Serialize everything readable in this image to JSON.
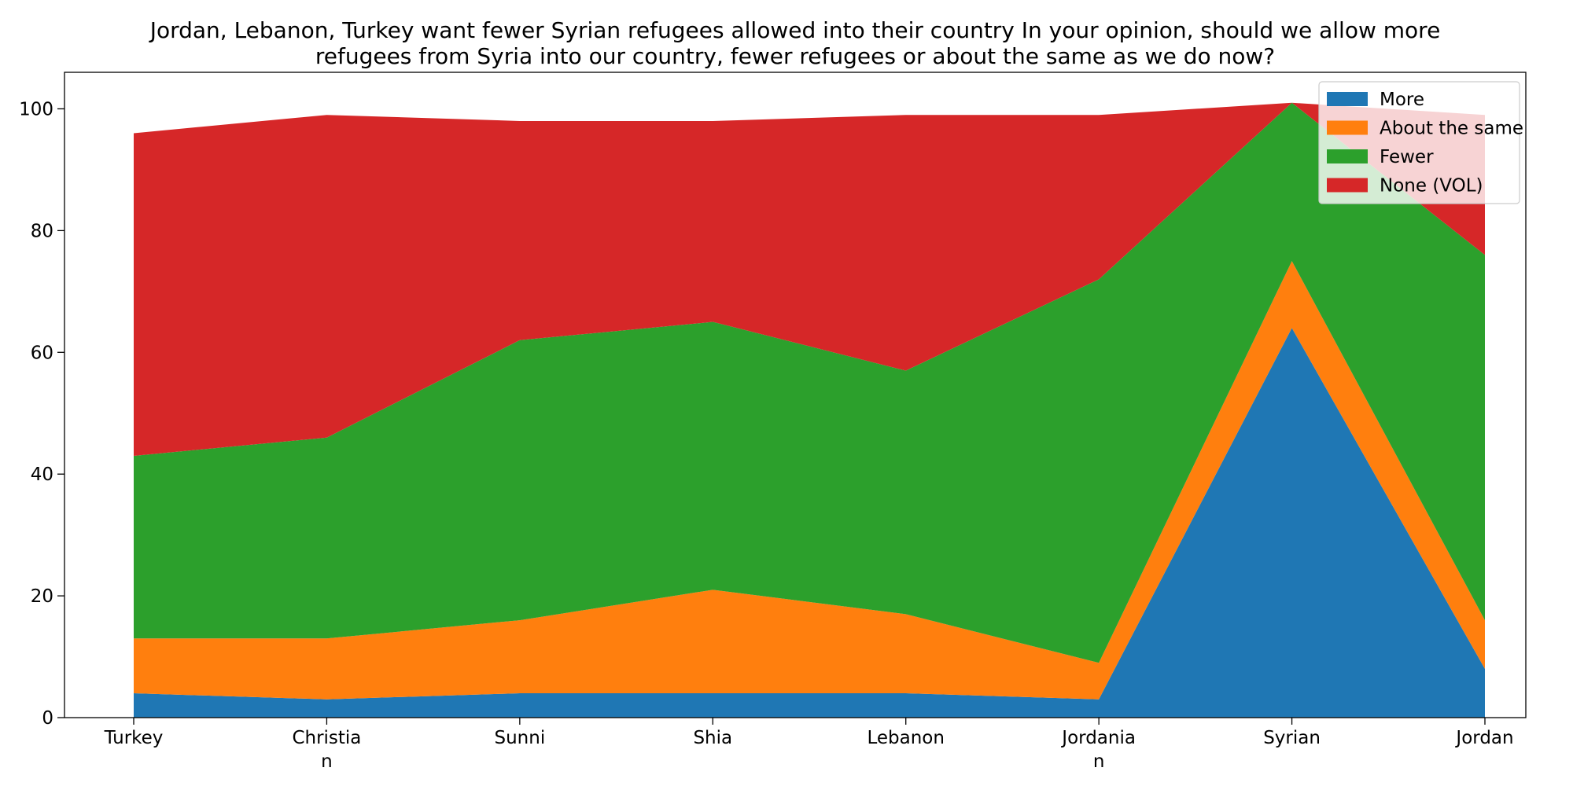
{
  "chart_data": {
    "type": "area",
    "stacked": true,
    "title_lines": [
      "Jordan, Lebanon, Turkey want fewer Syrian refugees allowed into their country In your opinion, should we allow more",
      "refugees from Syria into our country, fewer refugees or about the same as we do now?"
    ],
    "categories": [
      [
        "Turkey"
      ],
      [
        "Christia",
        "n"
      ],
      [
        "Sunni"
      ],
      [
        "Shia"
      ],
      [
        "Lebanon"
      ],
      [
        "Jordania",
        "n"
      ],
      [
        "Syrian"
      ],
      [
        "Jordan"
      ]
    ],
    "series": [
      {
        "name": "More",
        "color": "#1f77b4",
        "values": [
          4,
          3,
          4,
          4,
          4,
          3,
          64,
          8
        ]
      },
      {
        "name": "About the same",
        "color": "#ff7f0e",
        "values": [
          9,
          10,
          12,
          17,
          13,
          6,
          11,
          8
        ]
      },
      {
        "name": "Fewer",
        "color": "#2ca02c",
        "values": [
          30,
          33,
          46,
          44,
          40,
          63,
          26,
          60
        ]
      },
      {
        "name": "None (VOL)",
        "color": "#d62728",
        "values": [
          53,
          53,
          36,
          33,
          42,
          27,
          0,
          23
        ]
      }
    ],
    "ylim": [
      0,
      106
    ],
    "yticks": [
      0,
      20,
      40,
      60,
      80,
      100
    ],
    "xlabel": "",
    "ylabel": "",
    "legend": "top-right",
    "grid": false
  }
}
